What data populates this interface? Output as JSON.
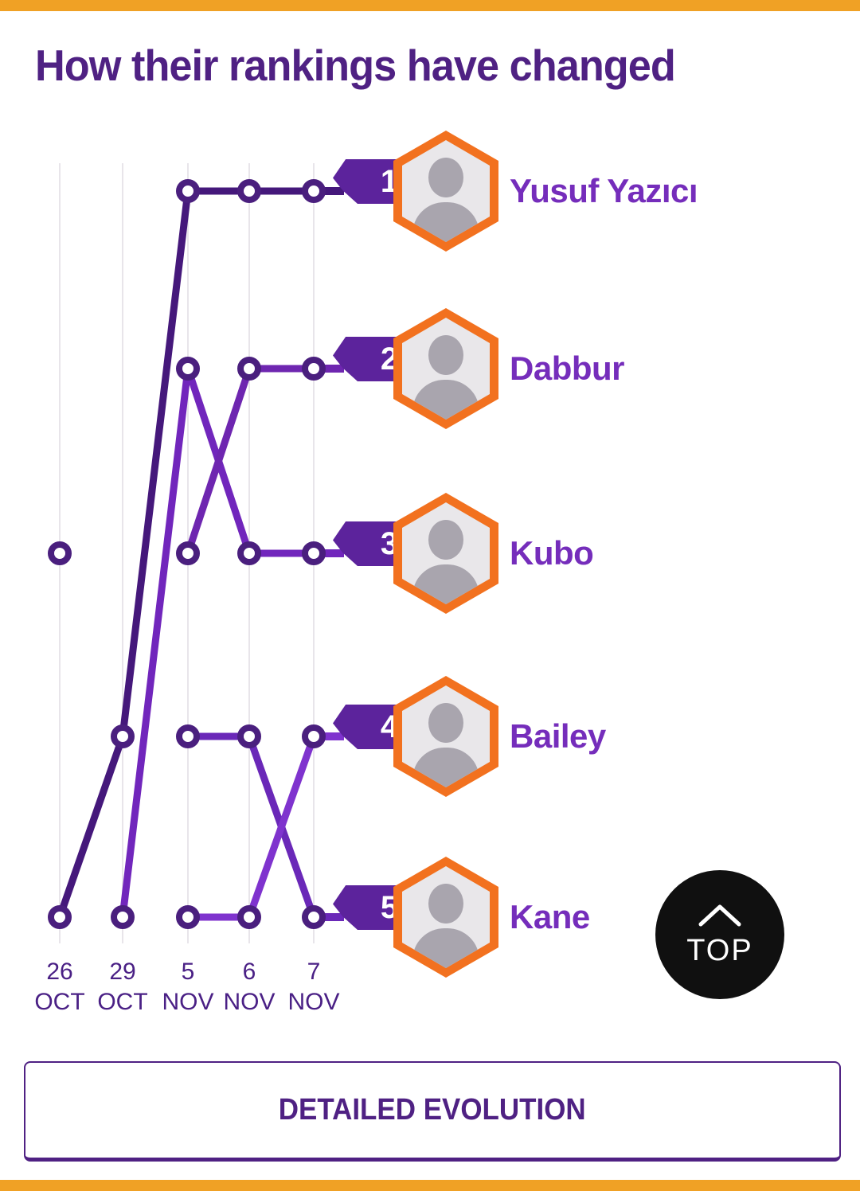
{
  "page": {
    "title": "How their rankings have changed",
    "border_color": "#F0A125",
    "background": "#FFFFFF"
  },
  "chart_data": {
    "type": "line",
    "subtype": "bump-ranking-chart",
    "title": "How their rankings have changed",
    "x_categories": [
      "26 OCT",
      "29 OCT",
      "5 NOV",
      "6 NOV",
      "7 NOV"
    ],
    "y_ranks_top_to_bottom": [
      1,
      2,
      3,
      4,
      5
    ],
    "grid": "vertical light gridline per date",
    "series": [
      {
        "name": "Yusuf Yazıcı",
        "final_rank": 1,
        "ranks": [
          5,
          4,
          1,
          1,
          1
        ],
        "color": "#45187B"
      },
      {
        "name": "Dabbur",
        "final_rank": 2,
        "ranks": [
          3,
          null,
          3,
          2,
          2
        ],
        "color": "#6E26B0"
      },
      {
        "name": "Kubo",
        "final_rank": 3,
        "ranks": [
          null,
          5,
          2,
          3,
          3
        ],
        "color": "#7126BC"
      },
      {
        "name": "Bailey",
        "final_rank": 4,
        "ranks": [
          null,
          null,
          5,
          5,
          4
        ],
        "color": "#7F33CE"
      },
      {
        "name": "Kane",
        "final_rank": 5,
        "ranks": [
          null,
          null,
          4,
          4,
          5
        ],
        "color": "#6A28B8"
      }
    ],
    "node_style": {
      "ring_color": "#4A1F7E",
      "fill": "#FFFFFF"
    },
    "gridline_color": "#E8E5EA"
  },
  "players": [
    {
      "rank": "1",
      "name": "Yusuf Yazıcı"
    },
    {
      "rank": "2",
      "name": "Dabbur"
    },
    {
      "rank": "3",
      "name": "Kubo"
    },
    {
      "rank": "4",
      "name": "Bailey"
    },
    {
      "rank": "5",
      "name": "Kane"
    }
  ],
  "axis": {
    "labels": [
      {
        "day": "26",
        "month": "OCT"
      },
      {
        "day": "29",
        "month": "OCT"
      },
      {
        "day": "5",
        "month": "NOV"
      },
      {
        "day": "6",
        "month": "NOV"
      },
      {
        "day": "7",
        "month": "NOV"
      }
    ]
  },
  "top_button": {
    "label": "TOP"
  },
  "detail_button": {
    "label": "DETAILED EVOLUTION"
  },
  "colors": {
    "title": "#4F2183",
    "player_name": "#752DBB",
    "badge_background": "#5C239C",
    "hexagon_border": "#F2711F",
    "page_border": "#F0A125",
    "top_button_background": "#101010"
  }
}
